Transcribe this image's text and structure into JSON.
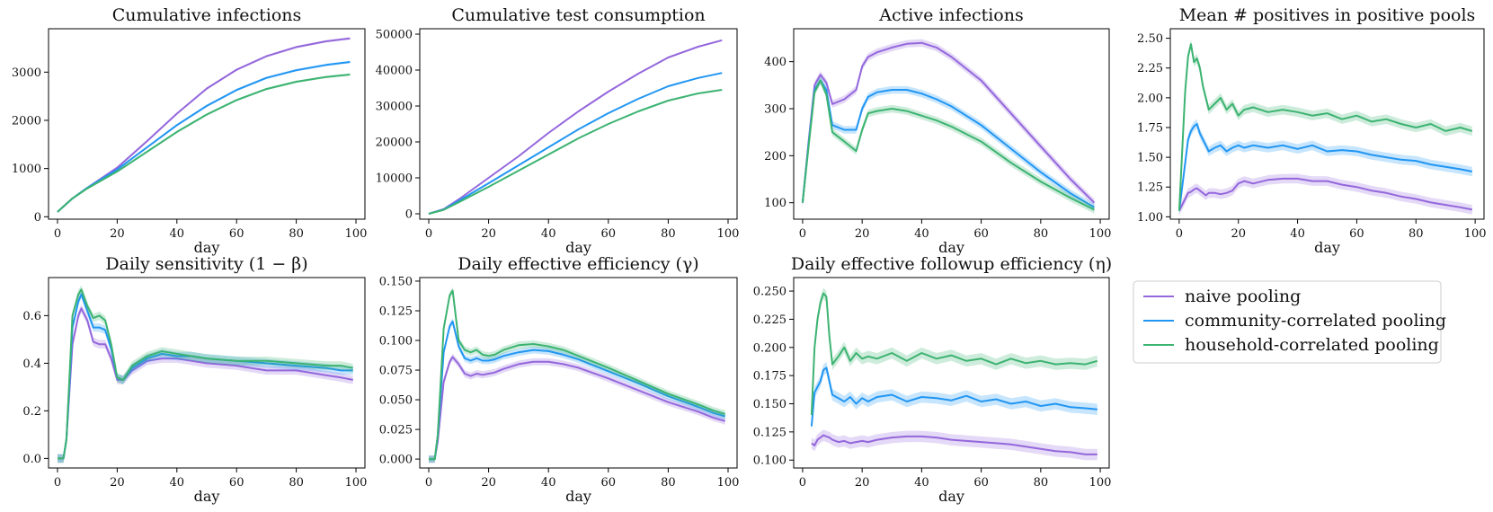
{
  "legend": {
    "entries": [
      {
        "label": "naive pooling",
        "color": "#9467dc"
      },
      {
        "label": "community-correlated pooling",
        "color": "#2196f3"
      },
      {
        "label": "household-correlated pooling",
        "color": "#3cb371"
      }
    ]
  },
  "chart_data": [
    {
      "type": "line",
      "title": "Cumulative infections",
      "xlabel": "day",
      "xlim": [
        -3,
        103
      ],
      "ylim": [
        -50,
        3900
      ],
      "xticks": [
        0,
        20,
        40,
        60,
        80,
        100
      ],
      "yticks": [
        0,
        1000,
        2000,
        3000
      ],
      "ytick_labels": [
        "0",
        "1000",
        "2000",
        "3000"
      ],
      "band": 25,
      "x": [
        0,
        5,
        10,
        20,
        30,
        40,
        50,
        60,
        70,
        80,
        90,
        98
      ],
      "series": [
        {
          "name": "naive pooling",
          "values": [
            100,
            380,
            600,
            1020,
            1570,
            2140,
            2660,
            3050,
            3330,
            3520,
            3640,
            3700
          ]
        },
        {
          "name": "community-correlated pooling",
          "values": [
            100,
            380,
            600,
            980,
            1440,
            1900,
            2300,
            2630,
            2880,
            3040,
            3150,
            3210
          ]
        },
        {
          "name": "household-correlated pooling",
          "values": [
            100,
            380,
            590,
            940,
            1350,
            1760,
            2120,
            2420,
            2650,
            2800,
            2900,
            2950
          ]
        }
      ]
    },
    {
      "type": "line",
      "title": "Cumulative test consumption",
      "xlabel": "day",
      "xlim": [
        -3,
        103
      ],
      "ylim": [
        -1500,
        51500
      ],
      "xticks": [
        0,
        20,
        40,
        60,
        80,
        100
      ],
      "yticks": [
        0,
        10000,
        20000,
        30000,
        40000,
        50000
      ],
      "ytick_labels": [
        "0",
        "10000",
        "20000",
        "30000",
        "40000",
        "50000"
      ],
      "band": 0,
      "x": [
        0,
        5,
        10,
        20,
        30,
        40,
        50,
        60,
        70,
        80,
        90,
        98
      ],
      "series": [
        {
          "name": "naive pooling",
          "values": [
            0,
            1300,
            4000,
            10000,
            16000,
            22500,
            28500,
            34000,
            39000,
            43500,
            46500,
            48300
          ]
        },
        {
          "name": "community-correlated pooling",
          "values": [
            0,
            1200,
            3600,
            8500,
            13500,
            18500,
            23500,
            28000,
            32000,
            35500,
            37800,
            39200
          ]
        },
        {
          "name": "household-correlated pooling",
          "values": [
            0,
            1100,
            3200,
            7500,
            12000,
            16500,
            21000,
            25000,
            28500,
            31500,
            33500,
            34500
          ]
        }
      ]
    },
    {
      "type": "line",
      "title": "Active infections",
      "xlabel": "day",
      "xlim": [
        -3,
        103
      ],
      "ylim": [
        65,
        470
      ],
      "xticks": [
        0,
        20,
        40,
        60,
        80,
        100
      ],
      "yticks": [
        100,
        200,
        300,
        400
      ],
      "ytick_labels": [
        "100",
        "200",
        "300",
        "400"
      ],
      "band": 8,
      "x": [
        0,
        2,
        4,
        6,
        8,
        10,
        14,
        18,
        20,
        22,
        25,
        30,
        35,
        40,
        45,
        50,
        60,
        70,
        80,
        90,
        98
      ],
      "series": [
        {
          "name": "naive pooling",
          "values": [
            100,
            230,
            350,
            372,
            355,
            310,
            320,
            340,
            390,
            410,
            420,
            430,
            438,
            440,
            430,
            410,
            360,
            290,
            220,
            150,
            100
          ]
        },
        {
          "name": "community-correlated pooling",
          "values": [
            100,
            225,
            340,
            360,
            340,
            265,
            255,
            255,
            300,
            325,
            335,
            340,
            340,
            332,
            320,
            305,
            265,
            215,
            165,
            120,
            90
          ]
        },
        {
          "name": "household-correlated pooling",
          "values": [
            100,
            220,
            335,
            360,
            330,
            250,
            230,
            210,
            255,
            290,
            295,
            300,
            295,
            285,
            275,
            262,
            230,
            185,
            145,
            110,
            85
          ]
        }
      ]
    },
    {
      "type": "line",
      "title": "Mean # positives in positive pools",
      "xlabel": "day",
      "xlim": [
        -3,
        103
      ],
      "ylim": [
        0.98,
        2.58
      ],
      "xticks": [
        0,
        20,
        40,
        60,
        80,
        100
      ],
      "yticks": [
        1.0,
        1.25,
        1.5,
        1.75,
        2.0,
        2.25,
        2.5
      ],
      "ytick_labels": [
        "1.00",
        "1.25",
        "1.50",
        "1.75",
        "2.00",
        "2.25",
        "2.50"
      ],
      "band": 0.04,
      "x": [
        0,
        1,
        2,
        3,
        4,
        5,
        6,
        7,
        8,
        9,
        10,
        12,
        14,
        16,
        18,
        20,
        22,
        25,
        30,
        35,
        40,
        45,
        50,
        55,
        60,
        65,
        70,
        75,
        80,
        85,
        90,
        95,
        99
      ],
      "series": [
        {
          "name": "naive pooling",
          "values": [
            1.05,
            1.1,
            1.15,
            1.2,
            1.21,
            1.23,
            1.24,
            1.22,
            1.2,
            1.18,
            1.2,
            1.2,
            1.19,
            1.2,
            1.22,
            1.28,
            1.3,
            1.28,
            1.31,
            1.32,
            1.32,
            1.3,
            1.3,
            1.27,
            1.25,
            1.22,
            1.2,
            1.17,
            1.15,
            1.12,
            1.1,
            1.08,
            1.06
          ]
        },
        {
          "name": "community-correlated pooling",
          "values": [
            1.05,
            1.25,
            1.45,
            1.65,
            1.72,
            1.76,
            1.78,
            1.7,
            1.65,
            1.6,
            1.55,
            1.58,
            1.6,
            1.55,
            1.58,
            1.6,
            1.58,
            1.6,
            1.58,
            1.6,
            1.57,
            1.6,
            1.55,
            1.56,
            1.55,
            1.52,
            1.5,
            1.48,
            1.47,
            1.44,
            1.42,
            1.4,
            1.38
          ]
        },
        {
          "name": "household-correlated pooling",
          "values": [
            1.05,
            1.55,
            2.05,
            2.35,
            2.45,
            2.3,
            2.33,
            2.25,
            2.1,
            2.0,
            1.9,
            1.95,
            2.0,
            1.9,
            1.95,
            1.85,
            1.9,
            1.92,
            1.88,
            1.9,
            1.88,
            1.85,
            1.87,
            1.82,
            1.85,
            1.8,
            1.82,
            1.78,
            1.75,
            1.78,
            1.72,
            1.75,
            1.72
          ]
        }
      ]
    },
    {
      "type": "line",
      "title": "Daily sensitivity (1 − β)",
      "xlabel": "day",
      "xlim": [
        -3,
        103
      ],
      "ylim": [
        -0.04,
        0.76
      ],
      "xticks": [
        0,
        20,
        40,
        60,
        80,
        100
      ],
      "yticks": [
        0.0,
        0.2,
        0.4,
        0.6
      ],
      "ytick_labels": [
        "0.0",
        "0.2",
        "0.4",
        "0.6"
      ],
      "band": 0.018,
      "x": [
        0,
        2,
        3,
        5,
        7,
        8,
        10,
        12,
        14,
        16,
        18,
        20,
        22,
        25,
        30,
        35,
        40,
        45,
        50,
        60,
        70,
        80,
        90,
        95,
        99
      ],
      "series": [
        {
          "name": "naive pooling",
          "values": [
            0,
            0,
            0.08,
            0.48,
            0.6,
            0.63,
            0.58,
            0.49,
            0.48,
            0.48,
            0.42,
            0.33,
            0.33,
            0.37,
            0.41,
            0.42,
            0.42,
            0.41,
            0.4,
            0.39,
            0.37,
            0.37,
            0.35,
            0.34,
            0.33
          ]
        },
        {
          "name": "community-correlated pooling",
          "values": [
            0,
            0,
            0.08,
            0.55,
            0.66,
            0.69,
            0.62,
            0.55,
            0.55,
            0.54,
            0.46,
            0.34,
            0.33,
            0.38,
            0.42,
            0.44,
            0.43,
            0.43,
            0.42,
            0.41,
            0.4,
            0.39,
            0.38,
            0.37,
            0.37
          ]
        },
        {
          "name": "household-correlated pooling",
          "values": [
            0,
            0,
            0.08,
            0.6,
            0.69,
            0.71,
            0.64,
            0.59,
            0.6,
            0.58,
            0.48,
            0.34,
            0.33,
            0.39,
            0.43,
            0.45,
            0.44,
            0.43,
            0.42,
            0.41,
            0.41,
            0.4,
            0.39,
            0.39,
            0.38
          ]
        }
      ]
    },
    {
      "type": "line",
      "title": "Daily effective efficiency (γ)",
      "xlabel": "day",
      "xlim": [
        -3,
        103
      ],
      "ylim": [
        -0.0075,
        0.153
      ],
      "xticks": [
        0,
        20,
        40,
        60,
        80,
        100
      ],
      "yticks": [
        0.0,
        0.025,
        0.05,
        0.075,
        0.1,
        0.125,
        0.15
      ],
      "ytick_labels": [
        "0.000",
        "0.025",
        "0.050",
        "0.075",
        "0.100",
        "0.125",
        "0.150"
      ],
      "band": 0.003,
      "x": [
        0,
        2,
        3,
        5,
        7,
        8,
        10,
        12,
        14,
        16,
        18,
        20,
        22,
        25,
        30,
        35,
        40,
        45,
        50,
        60,
        70,
        80,
        90,
        95,
        99
      ],
      "series": [
        {
          "name": "naive pooling",
          "values": [
            0,
            0,
            0.015,
            0.065,
            0.082,
            0.086,
            0.08,
            0.072,
            0.07,
            0.072,
            0.071,
            0.072,
            0.073,
            0.076,
            0.08,
            0.082,
            0.082,
            0.08,
            0.077,
            0.068,
            0.058,
            0.048,
            0.04,
            0.035,
            0.032
          ]
        },
        {
          "name": "community-correlated pooling",
          "values": [
            0,
            0,
            0.02,
            0.09,
            0.112,
            0.116,
            0.095,
            0.085,
            0.083,
            0.085,
            0.083,
            0.083,
            0.084,
            0.087,
            0.09,
            0.092,
            0.091,
            0.088,
            0.084,
            0.074,
            0.064,
            0.053,
            0.044,
            0.039,
            0.036
          ]
        },
        {
          "name": "household-correlated pooling",
          "values": [
            0,
            0,
            0.02,
            0.11,
            0.138,
            0.142,
            0.1,
            0.092,
            0.09,
            0.092,
            0.088,
            0.087,
            0.088,
            0.092,
            0.096,
            0.097,
            0.095,
            0.092,
            0.087,
            0.077,
            0.066,
            0.055,
            0.046,
            0.041,
            0.038
          ]
        }
      ]
    },
    {
      "type": "line",
      "title": "Daily effective followup efficiency (η)",
      "xlabel": "day",
      "xlim": [
        -3,
        103
      ],
      "ylim": [
        0.093,
        0.262
      ],
      "xticks": [
        0,
        20,
        40,
        60,
        80,
        100
      ],
      "yticks": [
        0.1,
        0.125,
        0.15,
        0.175,
        0.2,
        0.225,
        0.25
      ],
      "ytick_labels": [
        "0.100",
        "0.125",
        "0.150",
        "0.175",
        "0.200",
        "0.225",
        "0.250"
      ],
      "band": 0.005,
      "x": [
        3,
        4,
        5,
        6,
        7,
        8,
        9,
        10,
        12,
        14,
        16,
        18,
        20,
        22,
        25,
        30,
        35,
        40,
        45,
        50,
        55,
        60,
        65,
        70,
        75,
        80,
        85,
        90,
        95,
        99
      ],
      "series": [
        {
          "name": "naive pooling",
          "values": [
            0.115,
            0.113,
            0.118,
            0.12,
            0.122,
            0.121,
            0.12,
            0.118,
            0.116,
            0.117,
            0.115,
            0.116,
            0.117,
            0.116,
            0.118,
            0.12,
            0.121,
            0.121,
            0.12,
            0.118,
            0.117,
            0.116,
            0.115,
            0.114,
            0.112,
            0.11,
            0.108,
            0.107,
            0.105,
            0.105
          ]
        },
        {
          "name": "community-correlated pooling",
          "values": [
            0.13,
            0.16,
            0.165,
            0.17,
            0.18,
            0.182,
            0.17,
            0.158,
            0.155,
            0.152,
            0.156,
            0.15,
            0.155,
            0.152,
            0.156,
            0.158,
            0.152,
            0.156,
            0.155,
            0.153,
            0.157,
            0.152,
            0.154,
            0.15,
            0.152,
            0.148,
            0.15,
            0.147,
            0.146,
            0.145
          ]
        },
        {
          "name": "household-correlated pooling",
          "values": [
            0.14,
            0.2,
            0.225,
            0.24,
            0.248,
            0.245,
            0.21,
            0.185,
            0.192,
            0.2,
            0.188,
            0.195,
            0.19,
            0.192,
            0.19,
            0.195,
            0.188,
            0.195,
            0.19,
            0.193,
            0.188,
            0.19,
            0.185,
            0.19,
            0.186,
            0.188,
            0.185,
            0.186,
            0.185,
            0.188
          ]
        }
      ]
    }
  ]
}
